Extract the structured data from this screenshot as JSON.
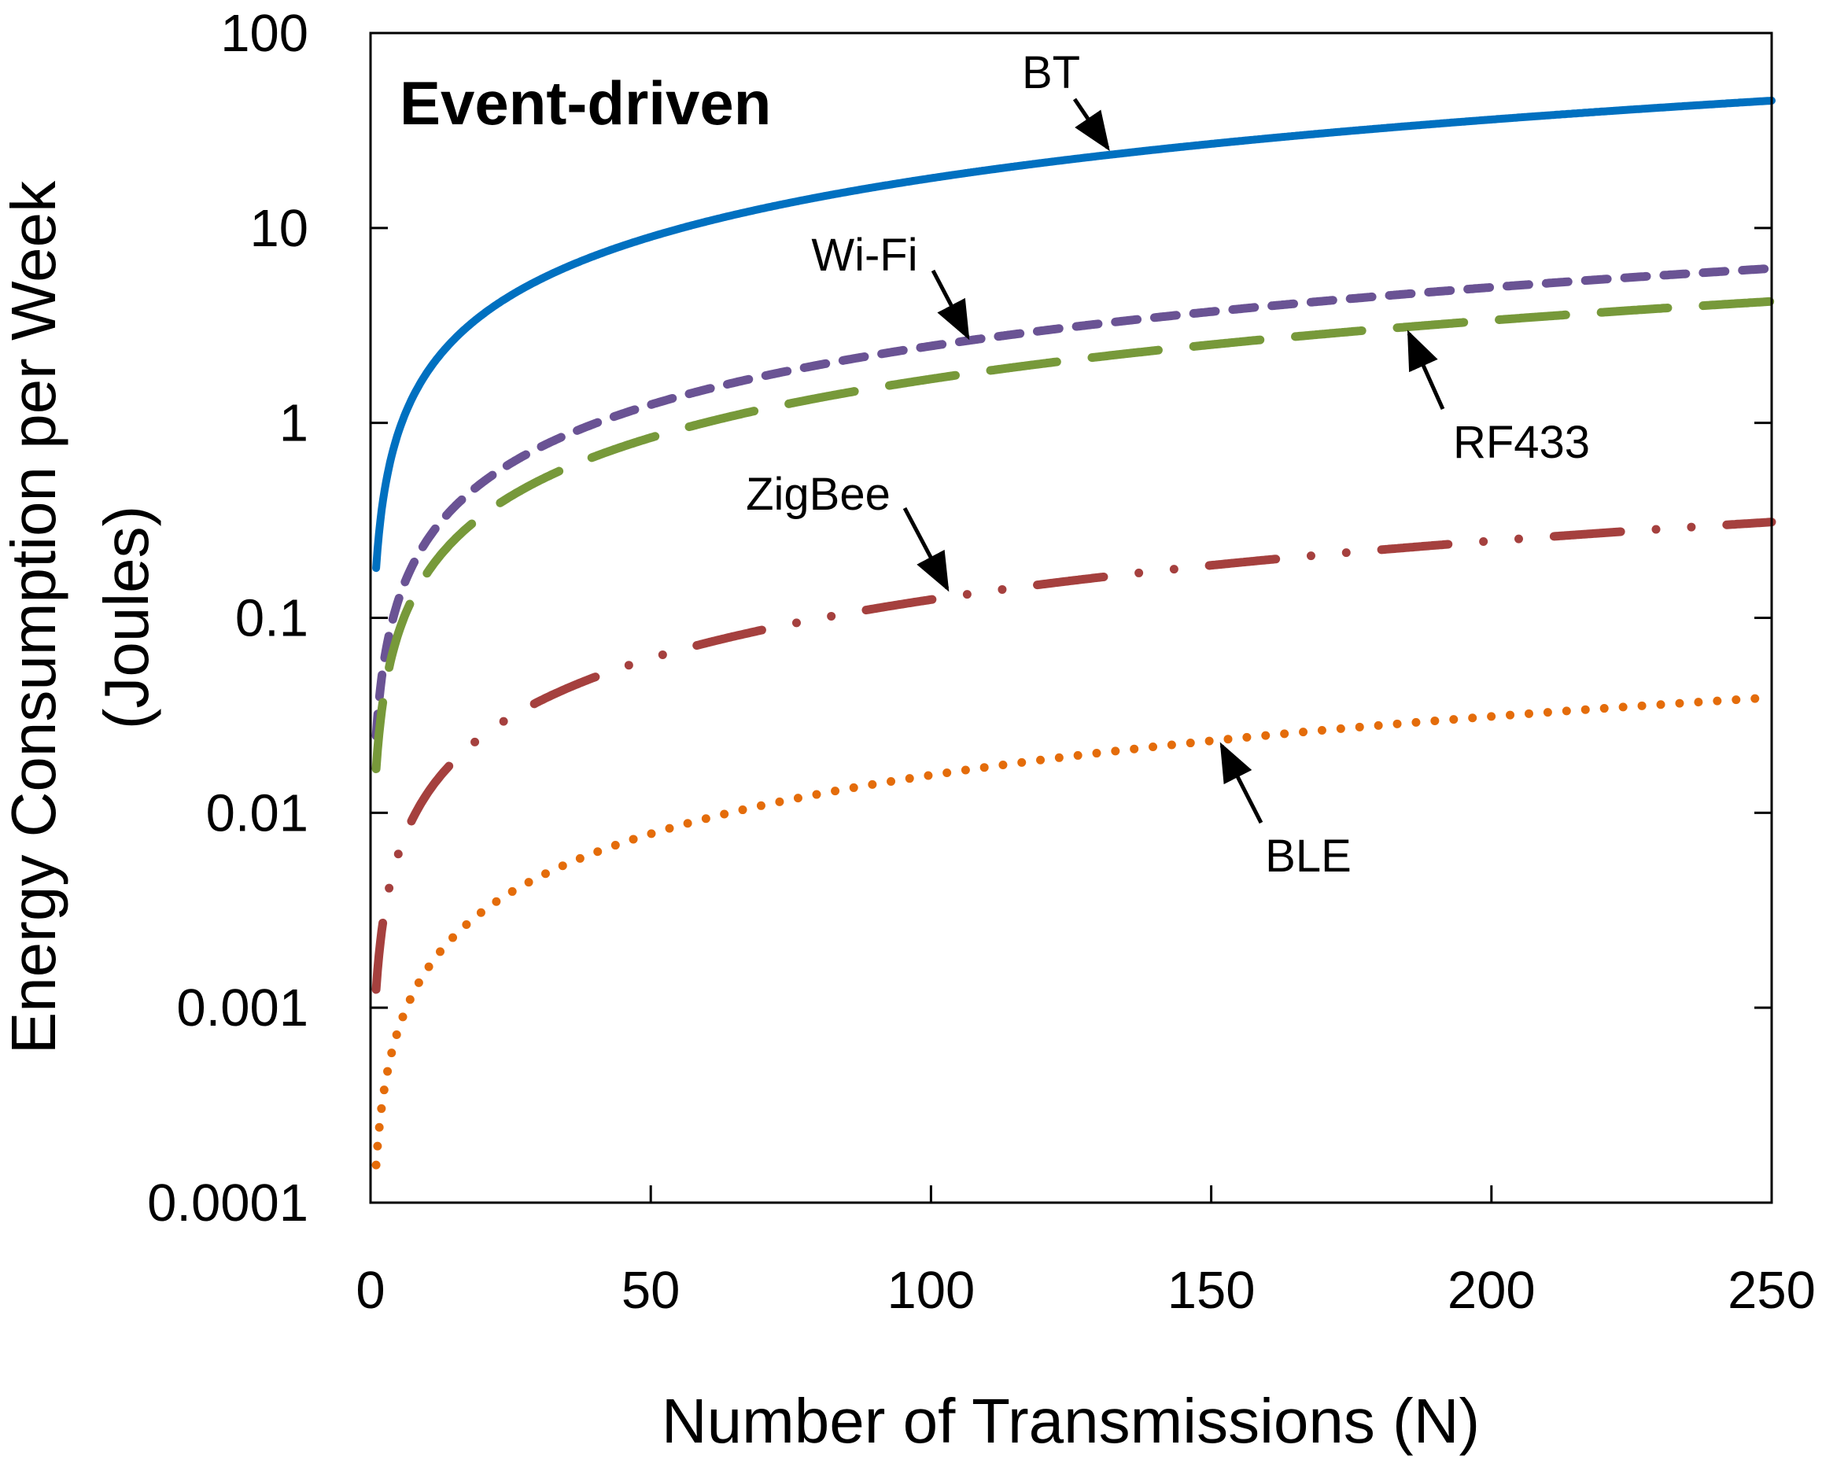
{
  "chart_data": {
    "type": "line",
    "title": "Event-driven",
    "xlabel": "Number of Transmissions (N)",
    "ylabel_line1": "Energy Consumption per Week",
    "ylabel_line2": "(Joules)",
    "xlim": [
      0,
      250
    ],
    "ylim": [
      0.0001,
      100
    ],
    "yscale": "log",
    "grid": false,
    "x_ticks": [
      "0",
      "50",
      "100",
      "150",
      "200",
      "250"
    ],
    "x_tick_values": [
      0,
      50,
      100,
      150,
      200,
      250
    ],
    "y_ticks": [
      "0.0001",
      "0.001",
      "0.01",
      "0.1",
      "1",
      "10",
      "100"
    ],
    "y_tick_values": [
      0.0001,
      0.001,
      0.01,
      0.1,
      1,
      10,
      100
    ],
    "series": [
      {
        "name": "BT",
        "style": "solid",
        "color": "#0070C0",
        "x": [
          1,
          250
        ],
        "y": [
          0.18,
          45
        ],
        "relation": "linear in N"
      },
      {
        "name": "Wi-Fi",
        "style": "short-dash",
        "color": "#6A5394",
        "x": [
          1,
          250
        ],
        "y": [
          0.025,
          6.2
        ],
        "relation": "linear in N"
      },
      {
        "name": "RF433",
        "style": "long-dash",
        "color": "#77993A",
        "x": [
          1,
          250
        ],
        "y": [
          0.0168,
          4.2
        ],
        "relation": "linear in N"
      },
      {
        "name": "ZigBee",
        "style": "long-dash-dot-dot",
        "color": "#A5403E",
        "x": [
          1,
          250
        ],
        "y": [
          0.00124,
          0.31
        ],
        "relation": "linear in N"
      },
      {
        "name": "BLE",
        "style": "dotted",
        "color": "#E46C0A",
        "x": [
          1,
          250
        ],
        "y": [
          0.000156,
          0.039
        ],
        "relation": "linear in N"
      }
    ],
    "annotations": [
      "BT",
      "Wi-Fi",
      "RF433",
      "ZigBee",
      "BLE"
    ]
  }
}
